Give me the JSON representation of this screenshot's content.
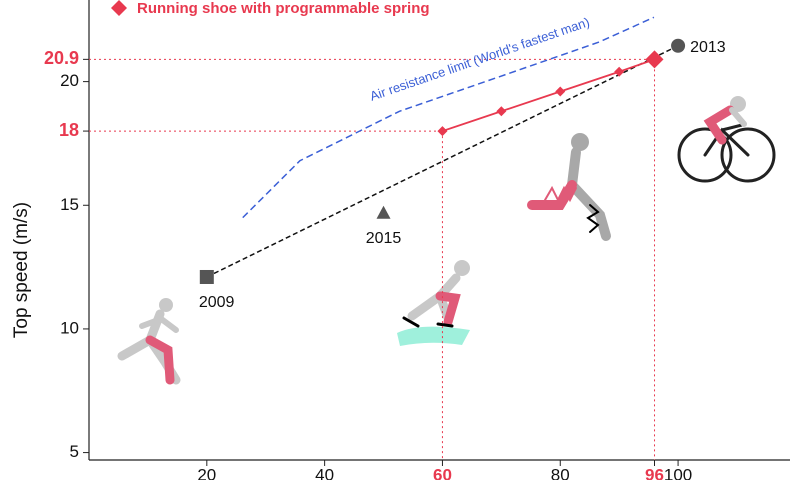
{
  "chart_data": {
    "type": "line",
    "y_label": "Top speed (m/s)",
    "xlim": [
      0,
      119
    ],
    "ylim": [
      4.7,
      23.3
    ],
    "xticks": [
      20,
      40,
      60,
      80,
      96,
      100
    ],
    "yticks": [
      5,
      10,
      15,
      18,
      20,
      20.9
    ],
    "series": [
      {
        "name": "Running shoe with programmable spring",
        "color": "#e8394f",
        "marker": "diamond",
        "x": [
          60,
          70,
          80,
          90,
          96
        ],
        "values": [
          18,
          18.8,
          19.6,
          20.4,
          20.9
        ]
      },
      {
        "name": "Air resistance limit (World's fastest man)",
        "color": "#3b5fd6",
        "dashed": true,
        "x": [
          26.1,
          35.8,
          52.7,
          69.7,
          86.6,
          95.9
        ],
        "values": [
          14.5,
          16.8,
          18.8,
          20.2,
          21.6,
          22.6
        ]
      }
    ],
    "points": [
      {
        "label": "2009",
        "x": 20,
        "y": 12.1,
        "marker": "square",
        "color": "#555555"
      },
      {
        "label": "2013",
        "x": 100,
        "y": 21.45,
        "marker": "circle",
        "color": "#555555"
      },
      {
        "label": "2015",
        "x": 50,
        "y": 14.7,
        "marker": "triangle",
        "color": "#555555"
      }
    ],
    "trend_color": "#111111"
  }
}
